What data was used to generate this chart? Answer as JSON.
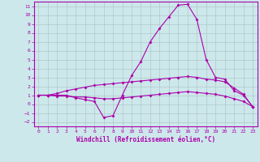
{
  "xlabel": "Windchill (Refroidissement éolien,°C)",
  "background_color": "#cde8eb",
  "grid_color": "#b0c8cc",
  "line_color": "#aa00aa",
  "xlim": [
    -0.5,
    23.5
  ],
  "ylim": [
    -2.5,
    11.5
  ],
  "yticks": [
    -2,
    -1,
    0,
    1,
    2,
    3,
    4,
    5,
    6,
    7,
    8,
    9,
    10,
    11
  ],
  "xticks": [
    0,
    1,
    2,
    3,
    4,
    5,
    6,
    7,
    8,
    9,
    10,
    11,
    12,
    13,
    14,
    15,
    16,
    17,
    18,
    19,
    20,
    21,
    22,
    23
  ],
  "line1_x": [
    0,
    1,
    2,
    3,
    4,
    5,
    6,
    7,
    8,
    9,
    10,
    11,
    12,
    13,
    14,
    15,
    16,
    17,
    18,
    19,
    20,
    21,
    22,
    23
  ],
  "line1_y": [
    1,
    1,
    1,
    1,
    0.7,
    0.5,
    0.3,
    -1.5,
    -1.3,
    1.0,
    3.2,
    4.8,
    7.0,
    8.5,
    9.8,
    11.1,
    11.2,
    9.5,
    5.0,
    3.0,
    2.8,
    1.5,
    1.0,
    -0.3
  ],
  "line2_x": [
    0,
    1,
    2,
    3,
    4,
    5,
    6,
    7,
    8,
    9,
    10,
    11,
    12,
    13,
    14,
    15,
    16,
    17,
    18,
    19,
    20,
    21,
    22,
    23
  ],
  "line2_y": [
    1,
    1,
    1.2,
    1.5,
    1.7,
    1.9,
    2.1,
    2.2,
    2.3,
    2.4,
    2.5,
    2.6,
    2.7,
    2.8,
    2.9,
    3.0,
    3.1,
    3.0,
    2.8,
    2.7,
    2.5,
    1.8,
    1.1,
    -0.3
  ],
  "line3_x": [
    0,
    1,
    2,
    3,
    4,
    5,
    6,
    7,
    8,
    9,
    10,
    11,
    12,
    13,
    14,
    15,
    16,
    17,
    18,
    19,
    20,
    21,
    22,
    23
  ],
  "line3_y": [
    1,
    1,
    0.9,
    0.9,
    0.8,
    0.8,
    0.7,
    0.6,
    0.6,
    0.7,
    0.8,
    0.9,
    1.0,
    1.1,
    1.2,
    1.3,
    1.4,
    1.3,
    1.2,
    1.1,
    0.9,
    0.6,
    0.3,
    -0.3
  ]
}
